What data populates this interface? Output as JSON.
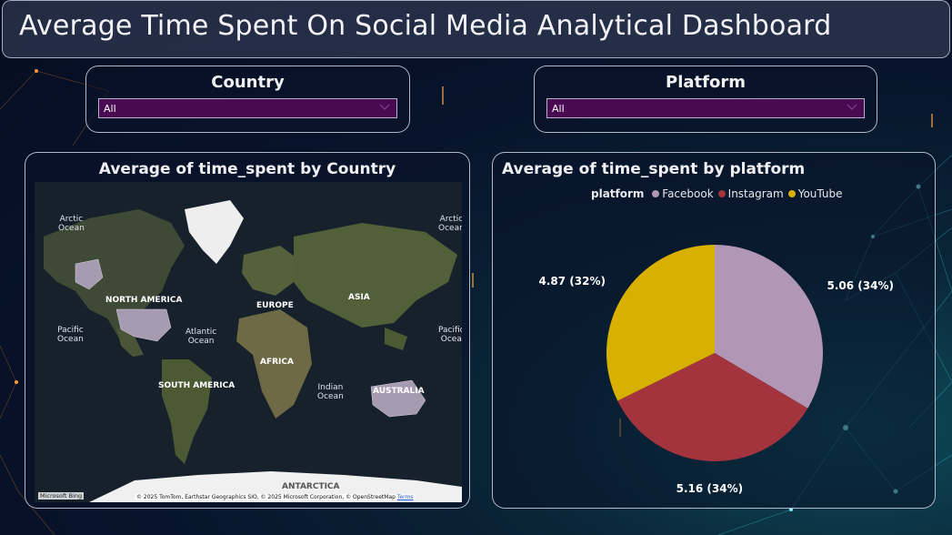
{
  "header": {
    "title": "Average Time Spent On Social Media Analytical Dashboard"
  },
  "slicers": {
    "country": {
      "label": "Country",
      "value": "All"
    },
    "platform": {
      "label": "Platform",
      "value": "All"
    }
  },
  "map_visual": {
    "title": "Average of time_spent by Country",
    "labels": {
      "arctic_left": "Arctic\nOcean",
      "arctic_right": "Arctic\nOcean",
      "pacific_left": "Pacific\nOcean",
      "pacific_right": "Pacific\nOcea",
      "atlantic": "Atlantic\nOcean",
      "indian": "Indian\nOcean",
      "north_america": "NORTH AMERICA",
      "south_america": "SOUTH AMERICA",
      "europe": "EUROPE",
      "asia": "ASIA",
      "africa": "AFRICA",
      "australia": "AUSTRALIA",
      "antarctica": "ANTARCTICA"
    },
    "attribution": "© 2025 TomTom, Earthstar Geographics SIO, © 2025 Microsoft Corporation, © OpenStreetMap",
    "terms": "Terms",
    "bing": "Microsoft Bing"
  },
  "pie_visual": {
    "title": "Average of time_spent by platform",
    "legend_title": "platform"
  },
  "chart_data": {
    "type": "pie",
    "title": "Average of time_spent by platform",
    "categories": [
      "Facebook",
      "Instagram",
      "YouTube"
    ],
    "values": [
      5.06,
      5.16,
      4.87
    ],
    "percent_labels": [
      "5.06 (34%)",
      "5.16 (34%)",
      "4.87 (32%)"
    ],
    "colors": [
      "#b196b5",
      "#a3343d",
      "#d8b000"
    ],
    "legend_placement": "top"
  }
}
